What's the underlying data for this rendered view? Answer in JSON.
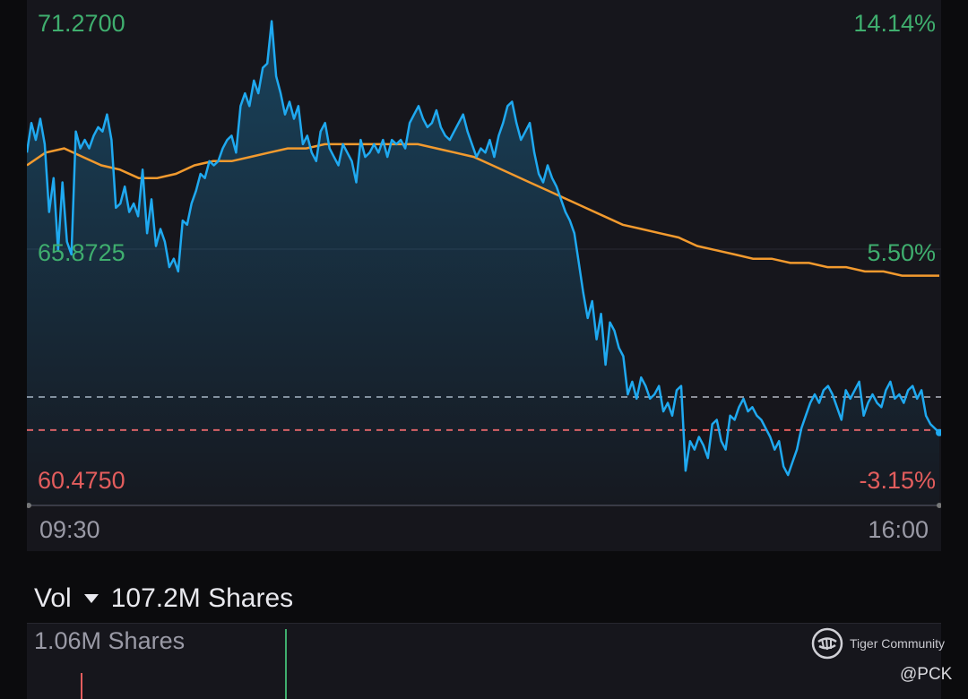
{
  "price": {
    "high_label": "71.2700",
    "mid_label": "65.8725",
    "low_label": "60.4750",
    "high_pct": "14.14%",
    "mid_pct": "5.50%",
    "low_pct": "-3.15%"
  },
  "time": {
    "start": "09:30",
    "end": "16:00"
  },
  "volume": {
    "label": "Vol",
    "total": "107.2M Shares",
    "scale": "1.06M Shares"
  },
  "watermark": {
    "brand": "Tiger Community",
    "user": "@PCK"
  },
  "colors": {
    "price_line": "#1fa9f0",
    "avg_line": "#f29a2e",
    "up": "#3fae6e",
    "down": "#e35d5d",
    "prev_close_line": "#8c8f99"
  },
  "chart_data": {
    "type": "line",
    "ylim": [
      60.475,
      71.27
    ],
    "x_labels": [
      "09:30",
      "16:00"
    ],
    "reference_lines": [
      {
        "name": "prev_close",
        "value": 62.44
      },
      {
        "name": "current",
        "value": 61.66
      }
    ],
    "series": [
      {
        "name": "",
        "values": [
          68.2,
          68.9,
          68.5,
          69.0,
          68.4,
          66.8,
          67.6,
          65.9,
          67.5,
          66.1,
          65.8,
          68.7,
          68.3,
          68.5,
          68.3,
          68.6,
          68.8,
          68.7,
          69.1,
          68.5,
          66.9,
          67.0,
          67.4,
          66.8,
          67.0,
          66.7,
          67.8,
          66.3,
          67.1,
          66.0,
          66.4,
          66.1,
          65.5,
          65.7,
          65.4,
          66.6,
          66.5,
          67.0,
          67.3,
          67.7,
          67.6,
          68.0,
          67.9,
          68.0,
          68.3,
          68.5,
          68.6,
          68.2,
          69.3,
          69.6,
          69.3,
          69.9,
          69.6,
          70.2,
          70.3,
          71.3,
          70.0,
          69.6,
          69.1,
          69.4,
          69.0,
          69.3,
          68.4,
          68.6,
          68.2,
          68.0,
          68.7,
          68.9,
          68.3,
          68.1,
          67.9,
          68.4,
          68.2,
          68.0,
          67.5,
          68.5,
          68.1,
          68.2,
          68.4,
          68.2,
          68.5,
          68.1,
          68.5,
          68.4,
          68.5,
          68.3,
          68.9,
          69.1,
          69.3,
          69.0,
          68.8,
          68.9,
          69.2,
          68.8,
          68.6,
          68.5,
          68.7,
          68.9,
          69.1,
          68.7,
          68.4,
          68.1,
          68.3,
          68.2,
          68.5,
          68.1,
          68.6,
          68.9,
          69.3,
          69.4,
          68.9,
          68.5,
          68.7,
          68.9,
          68.2,
          67.7,
          67.5,
          67.9,
          67.6,
          67.4,
          67.1,
          66.8,
          66.6,
          66.3,
          65.6,
          64.9,
          64.3,
          64.7,
          63.8,
          64.4,
          63.2,
          64.2,
          64.0,
          63.6,
          63.4,
          62.5,
          62.8,
          62.4,
          62.9,
          62.7,
          62.4,
          62.5,
          62.7,
          62.1,
          62.3,
          62.0,
          62.6,
          62.7,
          60.7,
          61.4,
          61.2,
          61.5,
          61.3,
          61.0,
          61.8,
          61.9,
          61.4,
          61.2,
          62.0,
          61.9,
          62.2,
          62.4,
          62.1,
          62.2,
          62.0,
          61.9,
          61.7,
          61.5,
          61.2,
          61.4,
          60.8,
          60.6,
          60.9,
          61.2,
          61.7,
          62.0,
          62.3,
          62.5,
          62.3,
          62.6,
          62.7,
          62.5,
          62.2,
          61.9,
          62.6,
          62.4,
          62.6,
          62.8,
          62.0,
          62.3,
          62.5,
          62.3,
          62.2,
          62.6,
          62.8,
          62.4,
          62.5,
          62.3,
          62.6,
          62.7,
          62.4,
          62.6,
          62.0,
          61.8,
          61.7,
          61.6
        ]
      },
      {
        "name": "",
        "values": [
          67.9,
          68.2,
          68.3,
          68.1,
          67.9,
          67.8,
          67.6,
          67.6,
          67.7,
          67.9,
          68.0,
          68.0,
          68.1,
          68.2,
          68.3,
          68.3,
          68.4,
          68.4,
          68.4,
          68.4,
          68.4,
          68.4,
          68.3,
          68.2,
          68.1,
          67.9,
          67.7,
          67.5,
          67.3,
          67.1,
          66.9,
          66.7,
          66.5,
          66.4,
          66.3,
          66.2,
          66.0,
          65.9,
          65.8,
          65.7,
          65.7,
          65.6,
          65.6,
          65.5,
          65.5,
          65.4,
          65.4,
          65.3,
          65.3,
          65.3
        ]
      }
    ]
  }
}
